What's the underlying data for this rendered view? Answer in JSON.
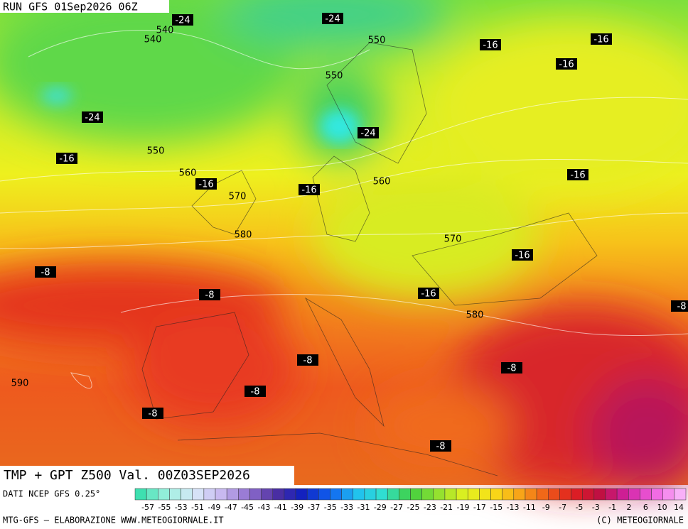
{
  "header": {
    "run": "RUN GFS 01Sep2026 06Z",
    "title": "TMP + GPT Z500 Val. 00Z03SEP2026"
  },
  "map": {
    "height_labels": [
      540,
      540,
      550,
      550,
      550,
      560,
      560,
      570,
      580,
      570,
      580,
      590
    ],
    "temp_labels": [
      -24,
      -24,
      -16,
      -16,
      -16,
      -24,
      -24,
      -16,
      -16,
      -16,
      -16,
      -16,
      -16,
      -8,
      -8,
      -8,
      -8,
      -8,
      -8,
      -8,
      -8
    ]
  },
  "footer": {
    "source": "DATI NCEP GFS 0.25°",
    "credit": "MTG-GFS — ELABORAZIONE WWW.METEOGIORNALE.IT",
    "copyright": "(C) METEOGIORNALE",
    "colorbar_labels": [
      -57,
      -55,
      -53,
      -51,
      -49,
      -47,
      -45,
      -43,
      -41,
      -39,
      -37,
      -35,
      -33,
      -31,
      -29,
      -27,
      -25,
      -23,
      -21,
      -19,
      -17,
      -15,
      -13,
      -11,
      -9,
      -7,
      -5,
      -3,
      -1,
      2,
      6,
      10,
      14
    ]
  }
}
